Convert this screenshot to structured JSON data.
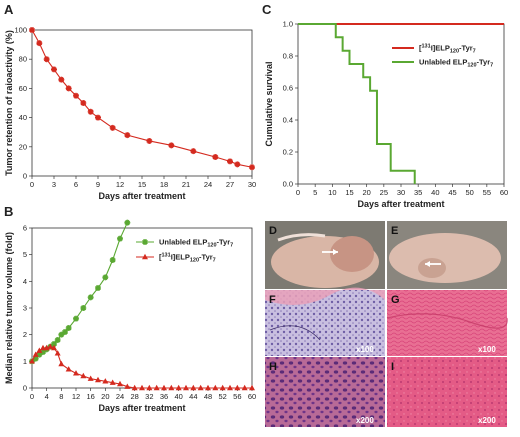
{
  "chart_data": [
    {
      "panel": "A",
      "type": "line",
      "xlabel": "Days after treatment",
      "ylabel": "Tumor retention of raioactivity (%)",
      "xlim": [
        0,
        30
      ],
      "ylim": [
        0,
        100
      ],
      "xticks": [
        "0",
        "3",
        "6",
        "9",
        "12",
        "15",
        "18",
        "21",
        "24",
        "27",
        "30"
      ],
      "yticks": [
        "0",
        "20",
        "40",
        "60",
        "80",
        "100"
      ],
      "grid": false,
      "series": [
        {
          "color": "#d42a1f",
          "marker": "star",
          "x": [
            0,
            1,
            2,
            3,
            4,
            5,
            6,
            7,
            8,
            9,
            11,
            13,
            16,
            19,
            22,
            25,
            27,
            28,
            30
          ],
          "y": [
            100,
            91,
            80,
            73,
            66,
            60,
            55,
            50,
            44,
            40,
            33,
            28,
            24,
            21,
            17,
            13,
            10,
            8,
            6
          ]
        }
      ]
    },
    {
      "panel": "B",
      "type": "line",
      "xlabel": "Days after treatment",
      "ylabel": "Median relative tumor volume (fold)",
      "xlim": [
        0,
        60
      ],
      "ylim": [
        0,
        6
      ],
      "xticks": [
        "0",
        "4",
        "8",
        "12",
        "16",
        "20",
        "24",
        "28",
        "32",
        "36",
        "40",
        "44",
        "48",
        "52",
        "56",
        "60"
      ],
      "yticks": [
        "0",
        "1",
        "2",
        "3",
        "4",
        "5",
        "6"
      ],
      "grid": false,
      "legend": "top-left",
      "series": [
        {
          "name": "Unlabled ELP120-Tyr7",
          "label_base": "Unlabled ELP",
          "label_sub": "120",
          "label_mid": "-Tyr",
          "label_sub2": "7",
          "color": "#5aa832",
          "marker": "star",
          "x": [
            0,
            1,
            2,
            3,
            4,
            5,
            6,
            7,
            8,
            9,
            10,
            12,
            14,
            16,
            18,
            20,
            22,
            24,
            26
          ],
          "y": [
            1.0,
            1.1,
            1.25,
            1.35,
            1.45,
            1.55,
            1.65,
            1.8,
            2.0,
            2.1,
            2.25,
            2.6,
            3.0,
            3.4,
            3.75,
            4.15,
            4.8,
            5.6,
            6.2
          ]
        },
        {
          "name": "[131I]ELP120-Tyr7",
          "label_pre": "[",
          "label_sup": "131",
          "label_base": "I]ELP",
          "label_sub": "120",
          "label_mid": "-Tyr",
          "label_sub2": "7",
          "color": "#d42a1f",
          "marker": "triangle",
          "x": [
            0,
            1,
            2,
            3,
            4,
            5,
            6,
            7,
            8,
            10,
            12,
            14,
            16,
            18,
            20,
            22,
            24,
            26,
            28,
            30,
            32,
            34,
            36,
            38,
            40,
            42,
            44,
            46,
            48,
            50,
            52,
            54,
            56,
            58,
            60
          ],
          "y": [
            1.0,
            1.25,
            1.4,
            1.5,
            1.5,
            1.55,
            1.5,
            1.3,
            0.9,
            0.7,
            0.55,
            0.45,
            0.35,
            0.3,
            0.25,
            0.2,
            0.15,
            0.05,
            0,
            0,
            0,
            0,
            0,
            0,
            0,
            0,
            0,
            0,
            0,
            0,
            0,
            0,
            0,
            0,
            0
          ]
        }
      ]
    },
    {
      "panel": "C",
      "type": "line",
      "xlabel": "Days after treatment",
      "ylabel": "Cumulative survival",
      "xlim": [
        0,
        60
      ],
      "ylim": [
        0,
        1
      ],
      "xticks": [
        "0",
        "5",
        "10",
        "15",
        "20",
        "25",
        "30",
        "35",
        "40",
        "45",
        "50",
        "55",
        "60"
      ],
      "yticks": [
        "0.0",
        "0.2",
        "0.4",
        "0.6",
        "0.8",
        "1.0"
      ],
      "grid": false,
      "legend": "right",
      "series": [
        {
          "name": "[131I]ELP120-Tyr7",
          "label_pre": "[",
          "label_sup": "131",
          "label_base": "I]ELP",
          "label_sub": "120",
          "label_mid": "-Tyr",
          "label_sub2": "7",
          "color": "#d42a1f",
          "step": true,
          "x": [
            0,
            60
          ],
          "y": [
            1.0,
            1.0
          ]
        },
        {
          "name": "Unlabled ELP120-Tyr7",
          "label_base": "Unlabled ELP",
          "label_sub": "120",
          "label_mid": "-Tyr",
          "label_sub2": "7",
          "color": "#5aa832",
          "step": true,
          "x": [
            0,
            11,
            13,
            15,
            19,
            21,
            23,
            27,
            34
          ],
          "y": [
            1.0,
            0.917,
            0.833,
            0.75,
            0.667,
            0.583,
            0.25,
            0.083,
            0.0
          ]
        }
      ]
    }
  ],
  "photos": {
    "labels": [
      "D",
      "E",
      "F",
      "G",
      "H",
      "I"
    ],
    "magnifications": {
      "F": "x100",
      "G": "x100",
      "H": "x200",
      "I": "x200"
    }
  }
}
